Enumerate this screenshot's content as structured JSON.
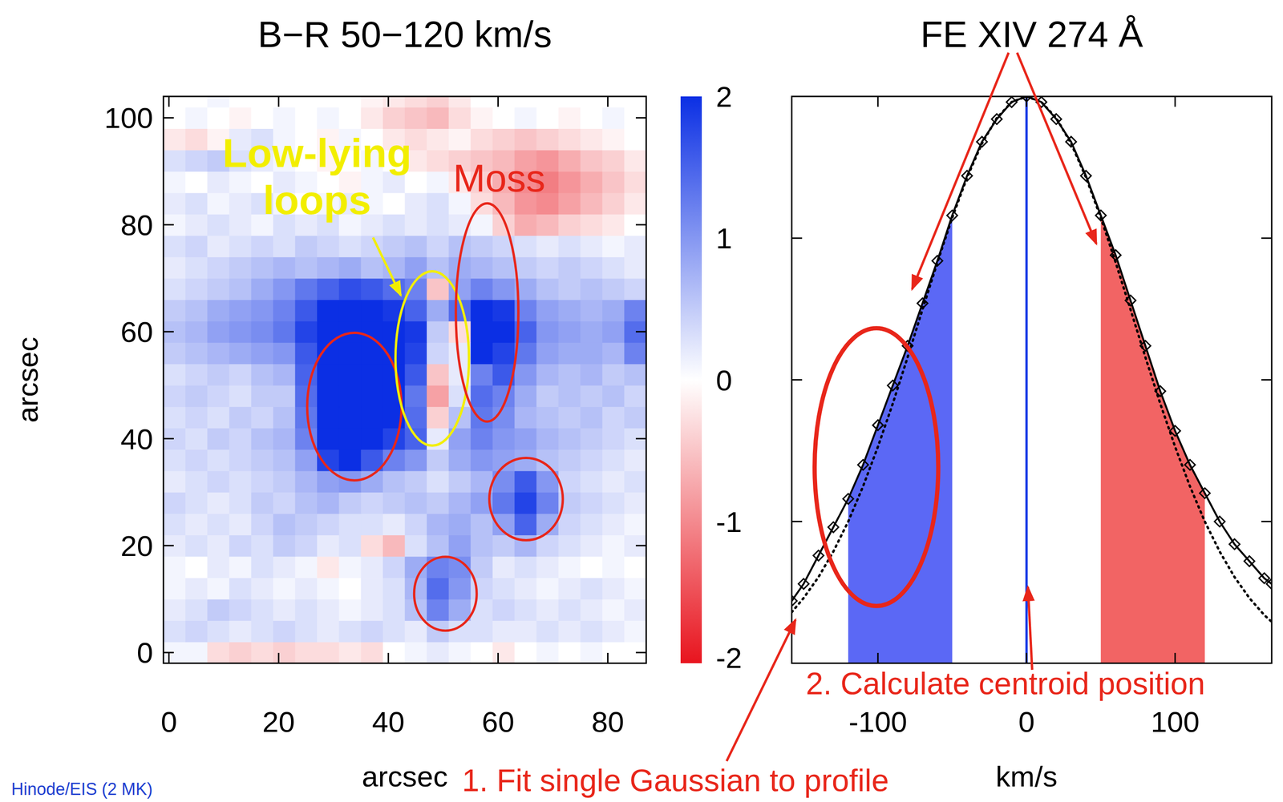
{
  "chart_data": [
    {
      "type": "heatmap",
      "title": "B−R 50−120 km/s",
      "x_label": "arcsec",
      "y_label": "arcsec",
      "xlim": [
        -1,
        87
      ],
      "ylim": [
        -2,
        104
      ],
      "xticks": [
        0,
        20,
        40,
        60,
        80
      ],
      "yticks": [
        0,
        20,
        40,
        60,
        80,
        100
      ],
      "x_edges": [
        -1,
        3,
        7,
        11,
        15,
        19,
        23,
        27,
        31,
        35,
        39,
        43,
        47,
        51,
        55,
        59,
        63,
        67,
        71,
        75,
        79,
        83,
        87
      ],
      "y_edges": [
        -2,
        2,
        6,
        10,
        14,
        18,
        22,
        26,
        30,
        34,
        38,
        42,
        46,
        50,
        54,
        58,
        62,
        66,
        70,
        74,
        78,
        82,
        86,
        90,
        94,
        98,
        102,
        104
      ],
      "cells": [
        [
          0.1,
          0.1,
          -0.3,
          -0.4,
          -0.3,
          -0.4,
          -0.3,
          -0.3,
          -0.2,
          -0.3,
          0,
          0.1,
          0.2,
          0.1,
          0,
          -0.2,
          0,
          0.1,
          0,
          0.1,
          0,
          0
        ],
        [
          0.3,
          0.4,
          0.3,
          0.2,
          0.3,
          0.4,
          0.3,
          0.2,
          0.3,
          0.4,
          0.3,
          0.2,
          0.5,
          0.3,
          0.3,
          0.2,
          0.2,
          0.3,
          0.2,
          0.3,
          0.2,
          0.1
        ],
        [
          0.2,
          0.3,
          0.5,
          0.4,
          0.3,
          0.2,
          0.3,
          0.2,
          0.1,
          0.2,
          0.3,
          0.6,
          1.2,
          0.8,
          0.3,
          0.4,
          0.3,
          0.2,
          0.3,
          0.2,
          0.1,
          0.2
        ],
        [
          0.1,
          0.2,
          0.1,
          0.3,
          0.2,
          0.1,
          0.2,
          0.1,
          0,
          0.2,
          0.3,
          0.7,
          1.4,
          1.0,
          0.4,
          0.3,
          0.2,
          0.1,
          0.2,
          0.3,
          0.2,
          0.1
        ],
        [
          0.1,
          0,
          0.2,
          0.1,
          0.3,
          0.2,
          0.1,
          -0.2,
          0.1,
          0.2,
          0.4,
          0.8,
          1.2,
          1.1,
          0.5,
          0.2,
          0.3,
          0.2,
          0.1,
          0,
          0.1,
          0
        ],
        [
          0.2,
          0.3,
          0.2,
          0.4,
          0.3,
          0.5,
          0.4,
          0.2,
          0.3,
          -0.3,
          -0.6,
          0.3,
          0.6,
          0.9,
          0.6,
          0.5,
          0.7,
          0.4,
          0.3,
          0.2,
          0.1,
          0.2
        ],
        [
          0.3,
          0.2,
          0.3,
          0.2,
          0.4,
          0.6,
          0.5,
          0.4,
          0.3,
          0.3,
          0.2,
          0.4,
          0.7,
          0.8,
          0.6,
          0.9,
          1.5,
          0.8,
          0.4,
          0.3,
          0.2,
          0.1
        ],
        [
          0.4,
          0.3,
          0.2,
          0.3,
          0.5,
          0.4,
          0.6,
          0.7,
          0.5,
          0.4,
          0.5,
          0.6,
          0.5,
          0.7,
          0.9,
          1.3,
          1.8,
          1.2,
          0.5,
          0.4,
          0.3,
          0.2
        ],
        [
          0.2,
          0.3,
          0.4,
          0.3,
          0.4,
          0.5,
          0.7,
          0.9,
          1.0,
          0.8,
          0.6,
          0.5,
          0.3,
          0.5,
          0.7,
          1.1,
          1.6,
          1.0,
          0.4,
          0.3,
          0.2,
          0.3
        ],
        [
          0.3,
          0.4,
          0.3,
          0.4,
          0.5,
          0.6,
          0.9,
          1.8,
          2.0,
          1.6,
          1.2,
          1.0,
          0.5,
          0.8,
          1.0,
          0.9,
          0.8,
          0.6,
          0.5,
          0.4,
          0.3,
          0.2
        ],
        [
          0.4,
          0.3,
          0.5,
          0.4,
          0.6,
          0.7,
          1.2,
          2.0,
          2.0,
          2.0,
          1.8,
          1.5,
          0.2,
          0.9,
          1.2,
          1.0,
          0.9,
          0.7,
          0.6,
          0.5,
          0.4,
          0.3
        ],
        [
          0.3,
          0.4,
          0.3,
          0.5,
          0.4,
          0.6,
          1.3,
          2.0,
          2.0,
          2.0,
          2.0,
          1.4,
          -0.4,
          0.6,
          1.3,
          1.1,
          0.7,
          0.6,
          0.5,
          0.6,
          0.4,
          0.5
        ],
        [
          0.4,
          0.5,
          0.4,
          0.3,
          0.5,
          0.5,
          1.4,
          2.0,
          2.0,
          2.0,
          2.0,
          1.3,
          -0.8,
          0.3,
          1.4,
          1.2,
          0.8,
          0.5,
          0.6,
          0.5,
          0.6,
          0.4
        ],
        [
          0.3,
          0.4,
          0.5,
          0.4,
          0.6,
          0.7,
          1.5,
          2.0,
          2.0,
          2.0,
          2.0,
          1.6,
          -0.5,
          0.2,
          1.2,
          1.6,
          1.0,
          0.7,
          0.6,
          0.7,
          0.5,
          0.6
        ],
        [
          0.5,
          0.6,
          0.7,
          0.8,
          0.9,
          1.0,
          1.6,
          2.0,
          2.0,
          2.0,
          2.0,
          1.8,
          0.4,
          0.2,
          2.0,
          1.8,
          1.3,
          0.9,
          0.8,
          0.8,
          0.7,
          1.2
        ],
        [
          0.6,
          0.7,
          0.9,
          1.0,
          1.1,
          1.3,
          1.8,
          2.0,
          2.0,
          2.0,
          2.0,
          1.9,
          0.5,
          -0.3,
          2.0,
          2.0,
          1.5,
          1.0,
          0.9,
          0.8,
          0.9,
          1.4
        ],
        [
          0.5,
          0.6,
          0.8,
          0.9,
          1.0,
          1.2,
          1.6,
          2.0,
          2.0,
          2.0,
          1.9,
          1.5,
          0.8,
          1.4,
          2.0,
          1.9,
          1.2,
          0.9,
          0.8,
          0.7,
          0.8,
          1.2
        ],
        [
          0.3,
          0.4,
          0.5,
          0.6,
          0.8,
          1.0,
          1.3,
          1.5,
          1.7,
          1.6,
          1.4,
          1.2,
          -0.5,
          0.9,
          1.2,
          1.0,
          0.8,
          0.6,
          0.5,
          0.6,
          0.5,
          0.4
        ],
        [
          0.2,
          0.3,
          0.4,
          0.5,
          0.6,
          0.7,
          0.6,
          0.7,
          0.8,
          0.6,
          0.7,
          0.9,
          0.6,
          0.8,
          0.7,
          0.6,
          0.5,
          0.4,
          0.5,
          0.4,
          0.3,
          0.2
        ],
        [
          0.3,
          0.4,
          0.2,
          0.3,
          0.4,
          0.3,
          0.5,
          0.4,
          0.3,
          0.4,
          0.5,
          0.6,
          0.4,
          0.6,
          0.5,
          0.4,
          0.3,
          0.2,
          0.3,
          0.2,
          0.1,
          0.2
        ],
        [
          0.1,
          0.2,
          0.3,
          0.2,
          0.1,
          0.3,
          0.2,
          0.3,
          0.1,
          0.2,
          0.3,
          0.2,
          0.3,
          0.2,
          0.1,
          -0.4,
          -0.7,
          -0.6,
          -0.4,
          -0.3,
          -0.2,
          0
        ],
        [
          0.2,
          0.3,
          0.1,
          0.2,
          0.3,
          0.1,
          0,
          0.1,
          0.2,
          0.1,
          0,
          0.2,
          0.3,
          0.1,
          -0.3,
          -0.6,
          -0.9,
          -1.0,
          -0.8,
          -0.6,
          -0.4,
          -0.2
        ],
        [
          0.1,
          0,
          0.2,
          0.1,
          0,
          0.2,
          0.1,
          0,
          -0.1,
          0.1,
          0.2,
          0,
          0.1,
          -0.2,
          -0.4,
          -0.7,
          -1.0,
          -1.1,
          -0.9,
          -0.7,
          -0.5,
          -0.3
        ],
        [
          0.3,
          0.4,
          0.5,
          0.3,
          0.2,
          0.1,
          0,
          -0.1,
          0,
          0.1,
          0,
          -0.2,
          -0.3,
          -0.4,
          -0.5,
          -0.6,
          -0.8,
          -0.9,
          -0.7,
          -0.5,
          -0.4,
          -0.2
        ],
        [
          -0.2,
          -0.3,
          -0.1,
          0.2,
          0.3,
          0.1,
          0,
          -0.1,
          0.1,
          0,
          -0.2,
          -0.3,
          -0.2,
          -0.1,
          -0.3,
          -0.4,
          -0.5,
          -0.4,
          -0.3,
          -0.2,
          -0.1,
          0
        ],
        [
          0,
          0.1,
          0,
          -0.1,
          0,
          0.1,
          0,
          0.1,
          0,
          -0.2,
          -0.4,
          -0.5,
          -0.6,
          -0.3,
          -0.1,
          0,
          0.1,
          0,
          -0.1,
          0,
          0.1,
          0
        ],
        [
          0,
          0,
          0.1,
          0,
          0,
          0,
          0,
          0,
          0,
          -0.1,
          -0.2,
          -0.3,
          -0.4,
          -0.2,
          0,
          0,
          0,
          0,
          0,
          0,
          0,
          0
        ]
      ],
      "colorbar": {
        "range": [
          -2,
          2
        ],
        "ticks": [
          2,
          1,
          0,
          -1,
          -2
        ],
        "colors": [
          "#e8141e",
          "#ffffff",
          "#0b2fe4"
        ]
      },
      "annotations": [
        "Low-lying loops",
        "Moss"
      ],
      "source": "Hinode/EIS (2 MK)"
    },
    {
      "type": "line",
      "title": "FE XIV 274 Å",
      "x_label": "km/s",
      "xlim": [
        -158,
        165
      ],
      "ylim": [
        0,
        1
      ],
      "xticks": [
        -100,
        0,
        100
      ],
      "yticks": [
        0.25,
        0.5,
        0.75
      ],
      "tick_labels": "x",
      "x": [
        -158,
        -150,
        -140,
        -130,
        -120,
        -110,
        -100,
        -90,
        -80,
        -70,
        -60,
        -50,
        -40,
        -30,
        -20,
        -10,
        0,
        10,
        20,
        30,
        40,
        50,
        60,
        70,
        80,
        90,
        100,
        110,
        120,
        130,
        140,
        150,
        160,
        165
      ],
      "series": [
        {
          "color": "#000000",
          "marker": "diamond",
          "values": [
            0.11,
            0.14,
            0.19,
            0.24,
            0.29,
            0.35,
            0.42,
            0.49,
            0.56,
            0.635,
            0.71,
            0.79,
            0.86,
            0.92,
            0.96,
            0.99,
            1.0,
            0.99,
            0.96,
            0.92,
            0.86,
            0.79,
            0.72,
            0.64,
            0.56,
            0.48,
            0.41,
            0.35,
            0.3,
            0.25,
            0.21,
            0.18,
            0.15,
            0.14
          ]
        },
        {
          "color": "#000000",
          "line_style": "dotted",
          "values": [
            0.09,
            0.115,
            0.152,
            0.197,
            0.25,
            0.312,
            0.382,
            0.458,
            0.54,
            0.624,
            0.707,
            0.786,
            0.857,
            0.917,
            0.962,
            0.99,
            1.0,
            0.99,
            0.962,
            0.917,
            0.857,
            0.786,
            0.707,
            0.624,
            0.54,
            0.458,
            0.382,
            0.312,
            0.25,
            0.197,
            0.152,
            0.115,
            0.085,
            0.073
          ]
        }
      ],
      "shaded_ranges": [
        {
          "range": [
            -120,
            -50
          ],
          "color": "#5b68f5"
        },
        {
          "range": [
            50,
            120
          ],
          "color": "#f26464"
        }
      ],
      "centroid": {
        "value": 0,
        "color": "#1a3ce6"
      },
      "annotations": [
        "1. Fit single Gaussian to profile",
        "2. Calculate centroid position"
      ]
    }
  ]
}
